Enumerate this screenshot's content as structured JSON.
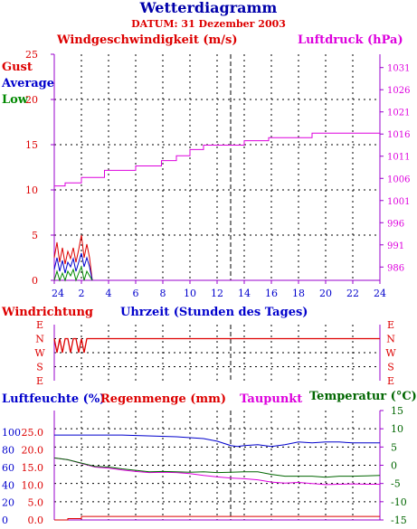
{
  "header": {
    "title": "Wetterdiagramm",
    "date": "DATUM: 31 Dezember 2003"
  },
  "colors": {
    "gust": "#dd0000",
    "average": "#0000cc",
    "low": "#008800",
    "pressure": "#dd00dd",
    "humidity": "#0000cc",
    "rain": "#dd0000",
    "dewpoint": "#dd00dd",
    "temperature": "#006600",
    "axis_violet": "#9900cc",
    "grid": "#000000"
  },
  "chart_data": [
    {
      "type": "line",
      "id": "wind-pressure",
      "left_title": "Windgeschwindigkeit (m/s)",
      "right_title": "Luftdruck (hPa)",
      "legend": [
        "Gust",
        "Average",
        "Low"
      ],
      "x_ticks": [
        "24",
        "2",
        "4",
        "6",
        "8",
        "10",
        "12",
        "14",
        "16",
        "18",
        "20",
        "22",
        "24"
      ],
      "xlim": [
        0,
        24
      ],
      "ylim_left": [
        0,
        25
      ],
      "y_ticks_left": [
        "0",
        "5",
        "10",
        "15",
        "20",
        "25"
      ],
      "ylim_right": [
        983,
        1034
      ],
      "y_ticks_right": [
        "986",
        "991",
        "996",
        "1001",
        "1006",
        "1011",
        "1016",
        "1021",
        "1026",
        "1031"
      ],
      "series": [
        {
          "name": "Gust",
          "axis": "left",
          "x": [
            0,
            0.2,
            0.4,
            0.6,
            0.8,
            1.0,
            1.2,
            1.4,
            1.6,
            1.8,
            2.0,
            2.2,
            2.4,
            2.6,
            2.8
          ],
          "y": [
            2.5,
            4.2,
            2.0,
            3.6,
            1.8,
            3.2,
            2.4,
            3.6,
            2.0,
            3.4,
            5.0,
            2.5,
            4.0,
            2.5,
            0
          ]
        },
        {
          "name": "Average",
          "axis": "left",
          "x": [
            0,
            0.2,
            0.4,
            0.6,
            0.8,
            1.0,
            1.2,
            1.4,
            1.6,
            1.8,
            2.0,
            2.2,
            2.4,
            2.6,
            2.8
          ],
          "y": [
            1.2,
            2.5,
            1.0,
            2.2,
            0.8,
            2.0,
            1.5,
            2.4,
            1.0,
            2.0,
            3.0,
            1.5,
            2.5,
            1.5,
            0
          ]
        },
        {
          "name": "Low",
          "axis": "left",
          "x": [
            0,
            0.2,
            0.4,
            0.6,
            0.8,
            1.0,
            1.2,
            1.4,
            1.6,
            1.8,
            2.0,
            2.2,
            2.4,
            2.6,
            2.8
          ],
          "y": [
            0,
            1.0,
            0,
            0.8,
            0,
            1.0,
            0.5,
            1.2,
            0,
            0.8,
            1.5,
            0,
            1.0,
            0.5,
            0
          ]
        },
        {
          "name": "Luftdruck",
          "axis": "right",
          "x": [
            0,
            0.8,
            0.8,
            2.0,
            2.0,
            3.7,
            3.7,
            6.0,
            6.0,
            7.9,
            7.9,
            9.0,
            9.0,
            10.0,
            10.0,
            11.0,
            11.0,
            14.0,
            14.0,
            15.8,
            15.8,
            19.0,
            19.0,
            24.0
          ],
          "y": [
            1004.3,
            1004.3,
            1005.0,
            1005.0,
            1006.2,
            1006.2,
            1007.8,
            1007.8,
            1008.8,
            1008.8,
            1010.0,
            1010.0,
            1011.1,
            1011.1,
            1012.5,
            1012.5,
            1013.5,
            1013.5,
            1014.5,
            1014.5,
            1015.2,
            1015.2,
            1016.2,
            1016.2
          ]
        }
      ]
    },
    {
      "type": "line",
      "id": "wind-direction",
      "left_title": "Windrichtung",
      "x_title": "Uhrzeit (Stunden des Tages)",
      "y_ticks": [
        "E",
        "N",
        "W",
        "S",
        "E"
      ],
      "xlim": [
        0,
        24
      ],
      "series": [
        {
          "name": "Windrichtung",
          "x": [
            0,
            0.2,
            0.4,
            0.6,
            0.8,
            1.0,
            1.2,
            1.4,
            1.6,
            1.8,
            2.0,
            2.2,
            2.4,
            2.6,
            2.8,
            24
          ],
          "y": [
            "N",
            "W",
            "N",
            "W",
            "N",
            "N",
            "W",
            "N",
            "N",
            "W",
            "N",
            "W",
            "N",
            "N",
            "N",
            "N"
          ]
        }
      ]
    },
    {
      "type": "line",
      "id": "humidity-temp",
      "legend": [
        "Luftfeuchte (%)",
        "Regenmenge (mm)",
        "Taupunkt",
        "Temperatur (°C)"
      ],
      "xlim": [
        0,
        24
      ],
      "y_ticks_humidity": [
        "0",
        "20",
        "40",
        "60",
        "80",
        "100"
      ],
      "ylim_humidity": [
        0,
        125
      ],
      "y_ticks_rain": [
        "0.0",
        "5.0",
        "10.0",
        "15.0",
        "20.0",
        "25.0"
      ],
      "ylim_rain": [
        0,
        31.25
      ],
      "y_ticks_temp": [
        "-15",
        "-10",
        "-5",
        "0",
        "5",
        "10",
        "15"
      ],
      "ylim_temp": [
        -15,
        15
      ],
      "series": [
        {
          "name": "Luftfeuchte (%)",
          "axis": "humidity",
          "x": [
            0,
            5,
            9,
            11,
            12,
            13,
            13.5,
            14,
            15,
            16,
            17,
            18,
            19,
            20,
            21,
            22,
            23,
            24
          ],
          "y": [
            97,
            97,
            95,
            93,
            90,
            85,
            84,
            85,
            86,
            84,
            86,
            89,
            88,
            89,
            89,
            88,
            88,
            88
          ]
        },
        {
          "name": "Regenmenge (mm)",
          "axis": "rain",
          "x": [
            0,
            1.0,
            1.0,
            2.0,
            2.0,
            24
          ],
          "y": [
            0,
            0,
            0.4,
            0.4,
            1.0,
            1.0
          ]
        },
        {
          "name": "Taupunkt",
          "axis": "temp",
          "x": [
            0,
            1,
            2,
            3,
            4,
            5,
            6,
            7,
            8,
            9,
            10,
            11,
            12,
            13,
            14,
            15,
            16,
            17,
            18,
            19,
            20,
            21,
            22,
            23,
            24
          ],
          "y": [
            2,
            1.5,
            0.5,
            -0.5,
            -0.8,
            -1.3,
            -1.7,
            -2.0,
            -1.9,
            -2.0,
            -2.3,
            -2.8,
            -3.2,
            -3.5,
            -3.7,
            -4.0,
            -4.6,
            -4.9,
            -4.7,
            -5.0,
            -5.3,
            -5.2,
            -5.1,
            -5.2,
            -5.2
          ]
        },
        {
          "name": "Temperatur (°C)",
          "axis": "temp",
          "x": [
            0,
            1,
            2,
            3,
            4,
            5,
            6,
            7,
            8,
            9,
            10,
            11,
            12,
            13,
            14,
            15,
            16,
            17,
            18,
            19,
            20,
            21,
            22,
            23,
            24
          ],
          "y": [
            2,
            1.5,
            0.6,
            -0.3,
            -0.5,
            -1.0,
            -1.4,
            -1.8,
            -1.7,
            -1.8,
            -1.9,
            -1.8,
            -2.0,
            -1.9,
            -1.8,
            -1.8,
            -2.5,
            -3.0,
            -3.0,
            -3.0,
            -3.3,
            -3.0,
            -3.0,
            -2.9,
            -2.8
          ]
        }
      ]
    }
  ]
}
